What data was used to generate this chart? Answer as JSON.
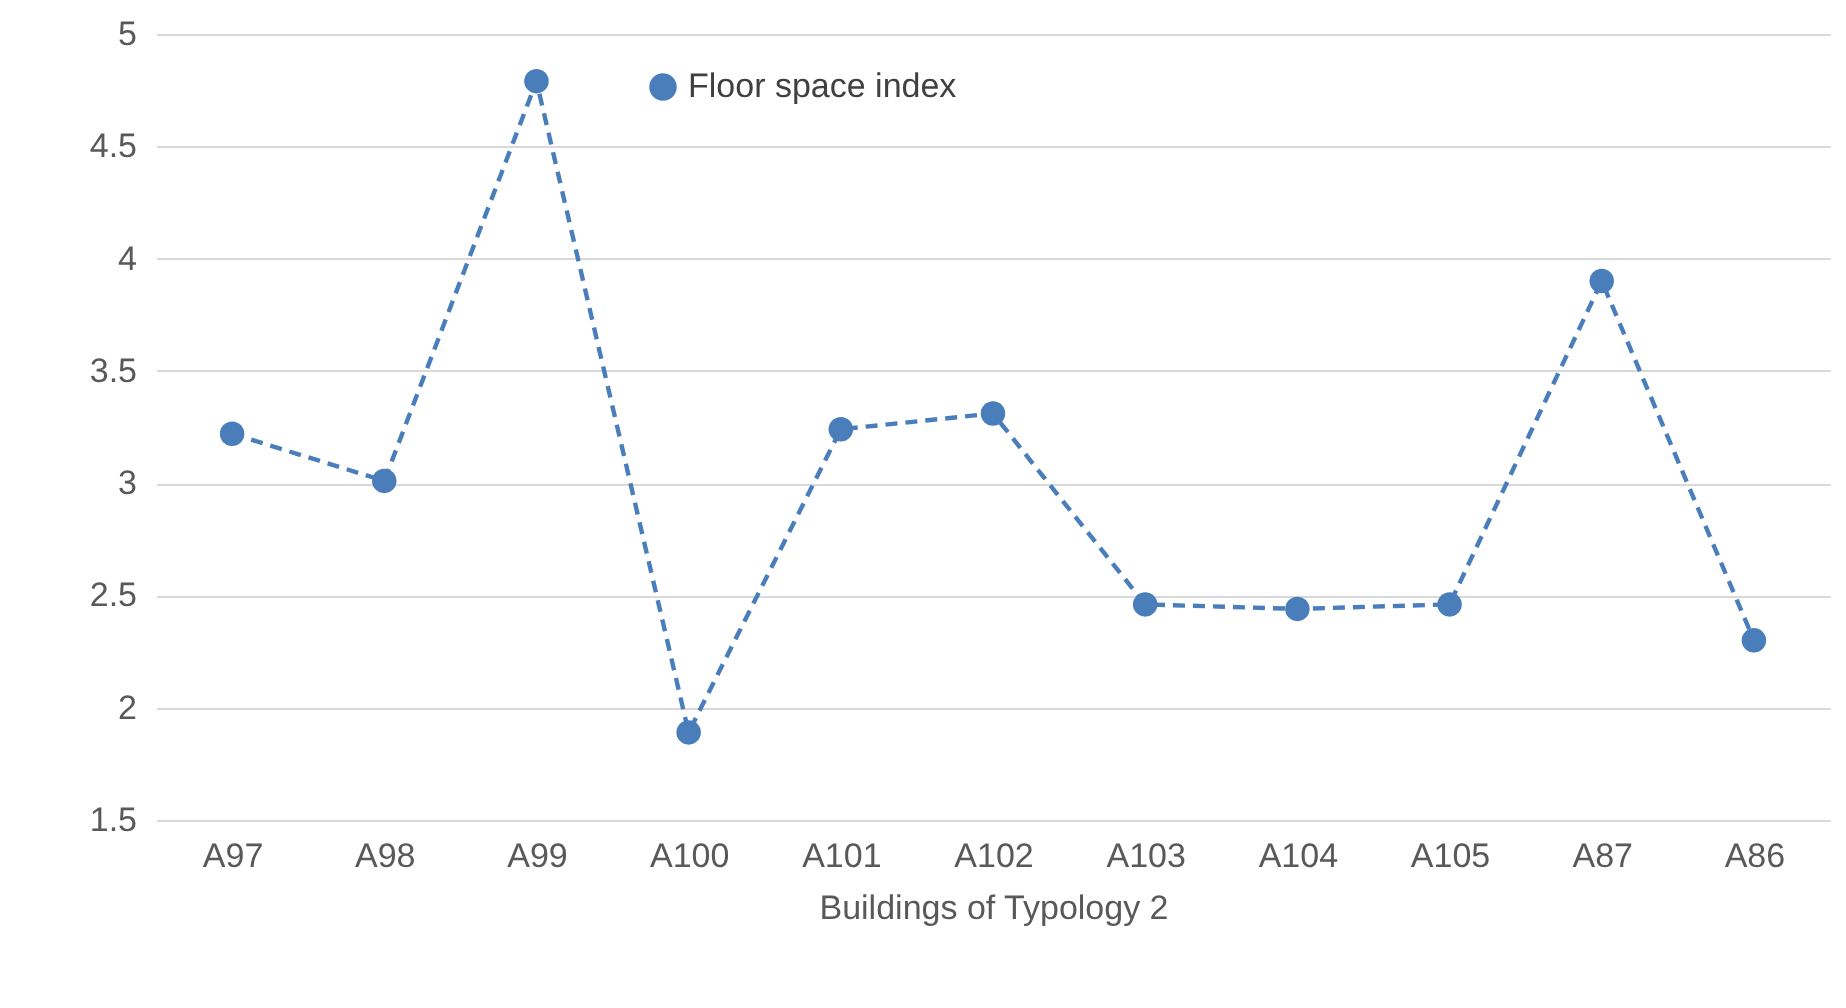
{
  "chart_data": {
    "type": "line",
    "xlabel": "Buildings of Typology 2",
    "categories": [
      "A97",
      "A98",
      "A99",
      "A100",
      "A101",
      "A102",
      "A103",
      "A104",
      "A105",
      "A87",
      "A86"
    ],
    "series": [
      {
        "name": "Floor space index",
        "color": "#4a7ebb",
        "values": [
          3.22,
          3.01,
          4.79,
          1.89,
          3.24,
          3.31,
          2.46,
          2.44,
          2.46,
          3.9,
          2.3
        ]
      }
    ],
    "ylim": [
      1.5,
      5
    ],
    "yticks": [
      1.5,
      2,
      2.5,
      3,
      3.5,
      4,
      4.5,
      5
    ],
    "grid": "y",
    "legend": "top",
    "marker": "circle",
    "line_style": "dashed"
  }
}
